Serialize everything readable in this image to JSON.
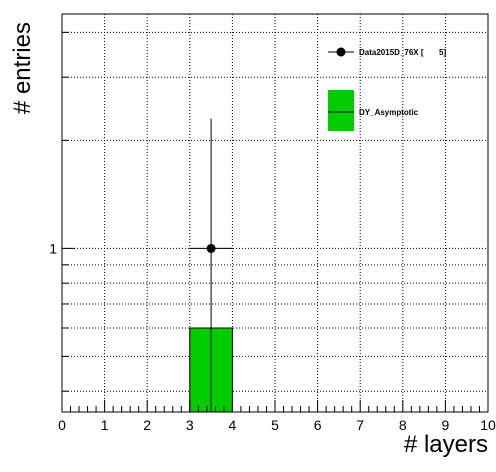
{
  "chart_data": {
    "type": "bar",
    "xlabel": "# layers",
    "ylabel": "# entries",
    "xlim": [
      0,
      10
    ],
    "ylim": [
      0.35,
      4.5
    ],
    "y_scale": "log",
    "grid": true,
    "legend_position": "top-right",
    "x_tick_labels": [
      "0",
      "1",
      "2",
      "3",
      "4",
      "5",
      "6",
      "7",
      "8",
      "9",
      "10"
    ],
    "y_tick_labels": [
      {
        "value": 1,
        "label": "1"
      }
    ],
    "series": [
      {
        "name": "Data2015D_76X [       5]",
        "kind": "points",
        "color": "#000000",
        "points": [
          {
            "x": 3.5,
            "y": 1,
            "xerr": 0.5,
            "yerr_low": 1,
            "yerr_high": 1.3
          }
        ]
      },
      {
        "name": "DY_Asymptotic",
        "kind": "hist",
        "color": "#00cc00",
        "bins": [
          {
            "x_low": 3,
            "x_high": 4,
            "value": 0.6
          }
        ]
      }
    ]
  }
}
